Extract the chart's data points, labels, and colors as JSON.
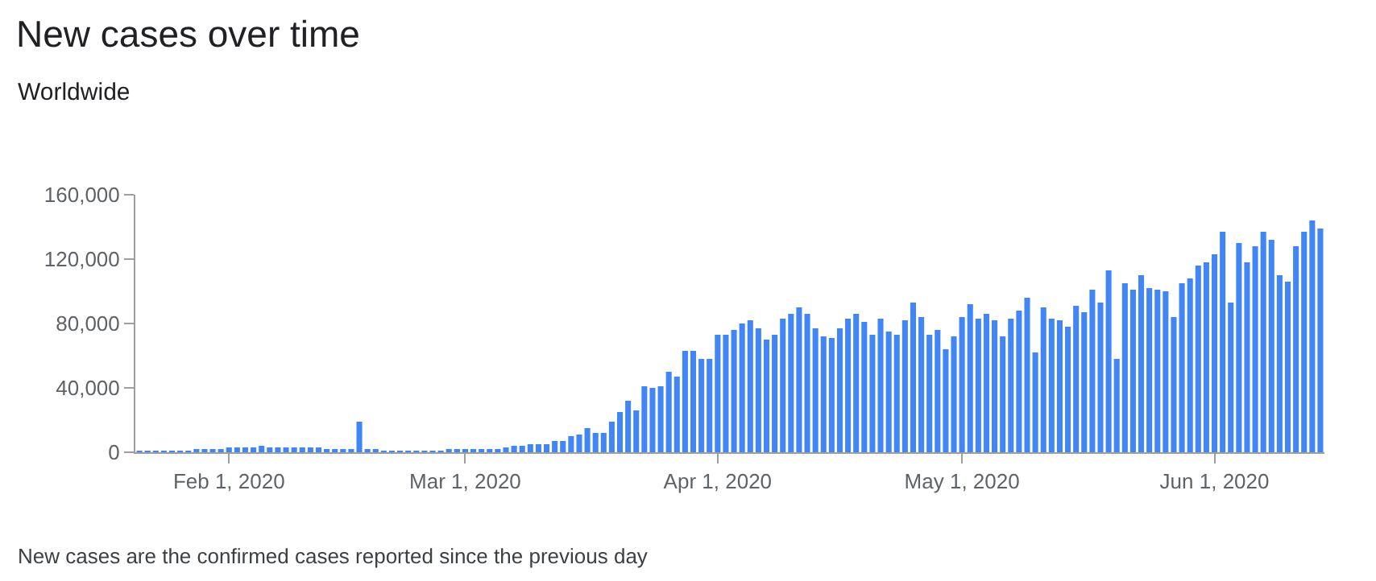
{
  "chart_data": {
    "type": "bar",
    "title": "New cases over time",
    "subtitle": "Worldwide",
    "annotations": [
      "New cases are the confirmed cases reported since the previous day"
    ],
    "x": [
      "2020-01-21",
      "2020-01-22",
      "2020-01-23",
      "2020-01-24",
      "2020-01-25",
      "2020-01-26",
      "2020-01-27",
      "2020-01-28",
      "2020-01-29",
      "2020-01-30",
      "2020-01-31",
      "2020-02-01",
      "2020-02-02",
      "2020-02-03",
      "2020-02-04",
      "2020-02-05",
      "2020-02-06",
      "2020-02-07",
      "2020-02-08",
      "2020-02-09",
      "2020-02-10",
      "2020-02-11",
      "2020-02-12",
      "2020-02-13",
      "2020-02-14",
      "2020-02-15",
      "2020-02-16",
      "2020-02-17",
      "2020-02-18",
      "2020-02-19",
      "2020-02-20",
      "2020-02-21",
      "2020-02-22",
      "2020-02-23",
      "2020-02-24",
      "2020-02-25",
      "2020-02-26",
      "2020-02-27",
      "2020-02-28",
      "2020-02-29",
      "2020-03-01",
      "2020-03-02",
      "2020-03-03",
      "2020-03-04",
      "2020-03-05",
      "2020-03-06",
      "2020-03-07",
      "2020-03-08",
      "2020-03-09",
      "2020-03-10",
      "2020-03-11",
      "2020-03-12",
      "2020-03-13",
      "2020-03-14",
      "2020-03-15",
      "2020-03-16",
      "2020-03-17",
      "2020-03-18",
      "2020-03-19",
      "2020-03-20",
      "2020-03-21",
      "2020-03-22",
      "2020-03-23",
      "2020-03-24",
      "2020-03-25",
      "2020-03-26",
      "2020-03-27",
      "2020-03-28",
      "2020-03-29",
      "2020-03-30",
      "2020-03-31",
      "2020-04-01",
      "2020-04-02",
      "2020-04-03",
      "2020-04-04",
      "2020-04-05",
      "2020-04-06",
      "2020-04-07",
      "2020-04-08",
      "2020-04-09",
      "2020-04-10",
      "2020-04-11",
      "2020-04-12",
      "2020-04-13",
      "2020-04-14",
      "2020-04-15",
      "2020-04-16",
      "2020-04-17",
      "2020-04-18",
      "2020-04-19",
      "2020-04-20",
      "2020-04-21",
      "2020-04-22",
      "2020-04-23",
      "2020-04-24",
      "2020-04-25",
      "2020-04-26",
      "2020-04-27",
      "2020-04-28",
      "2020-04-29",
      "2020-04-30",
      "2020-05-01",
      "2020-05-02",
      "2020-05-03",
      "2020-05-04",
      "2020-05-05",
      "2020-05-06",
      "2020-05-07",
      "2020-05-08",
      "2020-05-09",
      "2020-05-10",
      "2020-05-11",
      "2020-05-12",
      "2020-05-13",
      "2020-05-14",
      "2020-05-15",
      "2020-05-16",
      "2020-05-17",
      "2020-05-18",
      "2020-05-19",
      "2020-05-20",
      "2020-05-21",
      "2020-05-22",
      "2020-05-23",
      "2020-05-24",
      "2020-05-25",
      "2020-05-26",
      "2020-05-27",
      "2020-05-28",
      "2020-05-29",
      "2020-05-30",
      "2020-05-31",
      "2020-06-01",
      "2020-06-02",
      "2020-06-03",
      "2020-06-04",
      "2020-06-05",
      "2020-06-06",
      "2020-06-07",
      "2020-06-08",
      "2020-06-09",
      "2020-06-10",
      "2020-06-11",
      "2020-06-12",
      "2020-06-13",
      "2020-06-14"
    ],
    "series": [
      {
        "color": "#4285f4",
        "values": [
          1000,
          1000,
          1000,
          1000,
          1000,
          1000,
          1000,
          2000,
          2000,
          2000,
          2000,
          3000,
          3000,
          3000,
          3000,
          4000,
          3000,
          3000,
          3000,
          3000,
          3000,
          3000,
          3000,
          2000,
          2000,
          2000,
          2000,
          19000,
          2000,
          2000,
          1000,
          1000,
          1000,
          1000,
          1000,
          1000,
          1000,
          1000,
          2000,
          2000,
          2000,
          2000,
          2000,
          2000,
          2000,
          3000,
          4000,
          4000,
          5000,
          5000,
          5000,
          7000,
          7000,
          10000,
          11000,
          15000,
          12000,
          12000,
          19000,
          25000,
          32000,
          26000,
          41000,
          40000,
          41000,
          50000,
          47000,
          63000,
          63000,
          58000,
          58000,
          73000,
          73000,
          76000,
          80000,
          82000,
          77000,
          70000,
          73000,
          83000,
          86000,
          90000,
          86000,
          77000,
          72000,
          71000,
          77000,
          83000,
          86000,
          81000,
          73000,
          83000,
          75000,
          73000,
          82000,
          93000,
          84000,
          73000,
          76000,
          64000,
          72000,
          84000,
          92000,
          83000,
          86000,
          82000,
          72000,
          83000,
          88000,
          96000,
          62000,
          90000,
          83000,
          82000,
          78000,
          91000,
          87000,
          101000,
          93000,
          113000,
          58000,
          105000,
          101000,
          110000,
          102000,
          101000,
          100000,
          84000,
          105000,
          108000,
          116000,
          118000,
          123000,
          137000,
          93000,
          130000,
          118000,
          128000,
          137000,
          132000,
          110000,
          106000,
          128000,
          137000,
          144000,
          139000
        ]
      }
    ],
    "xlim": [
      "2020-01-20T12:00",
      "2020-06-14T12:00"
    ],
    "xticks": [
      {
        "value": "2020-02-01",
        "label": "Feb 1, 2020"
      },
      {
        "value": "2020-03-01",
        "label": "Mar 1, 2020"
      },
      {
        "value": "2020-04-01",
        "label": "Apr 1, 2020"
      },
      {
        "value": "2020-05-01",
        "label": "May 1, 2020"
      },
      {
        "value": "2020-06-01",
        "label": "Jun 1, 2020"
      }
    ],
    "ylim": [
      0,
      160000
    ],
    "yticks": [
      0,
      {
        "value": 40000,
        "label": "40,000"
      },
      {
        "value": 80000,
        "label": "80,000"
      },
      {
        "value": 120000,
        "label": "120,000"
      },
      {
        "value": 160000,
        "label": "160,000"
      }
    ]
  }
}
